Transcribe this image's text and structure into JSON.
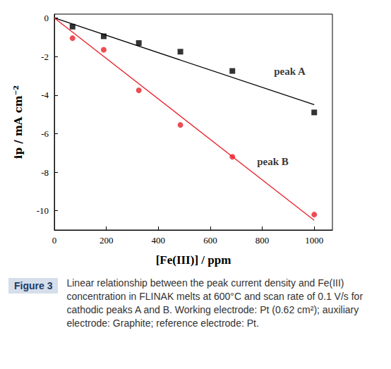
{
  "chart_data": {
    "type": "scatter",
    "xlabel": "[Fe(III)] / ppm",
    "ylabel": "ip / mA cm⁻²",
    "xlim": [
      0,
      1070
    ],
    "xticks": [
      0,
      200,
      400,
      600,
      800,
      1000
    ],
    "ylim": [
      -11,
      0.2
    ],
    "yticks": [
      0,
      -2,
      -4,
      -6,
      -8,
      -10
    ],
    "grid": false,
    "series": [
      {
        "name": "peak A",
        "color": "#000000",
        "marker": "square",
        "x": [
          70,
          190,
          325,
          485,
          685,
          1000
        ],
        "values": [
          -0.45,
          -0.95,
          -1.3,
          -1.75,
          -2.75,
          -4.9
        ],
        "fit": {
          "x": [
            0,
            1000
          ],
          "values": [
            0,
            -4.5
          ]
        }
      },
      {
        "name": "peak B",
        "color": "#e8202a",
        "marker": "circle",
        "x": [
          70,
          190,
          325,
          485,
          685,
          1000
        ],
        "values": [
          -1.05,
          -1.65,
          -3.75,
          -5.55,
          -7.2,
          -10.2
        ],
        "fit": {
          "x": [
            0,
            1000
          ],
          "values": [
            0,
            -10.5
          ]
        }
      }
    ],
    "annotations": [
      {
        "text": "peak A",
        "x": 845,
        "y": -2.75
      },
      {
        "text": "peak B",
        "x": 780,
        "y": -7.45
      }
    ]
  },
  "caption": {
    "label": "Figure 3",
    "text": "Linear relationship between the peak current density and Fe(III) concentration in FLINAK melts at 600°C and scan rate of 0.1 V/s for cathodic peaks A and B. Working electrode: Pt (0.62 cm²); auxiliary electrode: Graphite; reference electrode: Pt."
  }
}
